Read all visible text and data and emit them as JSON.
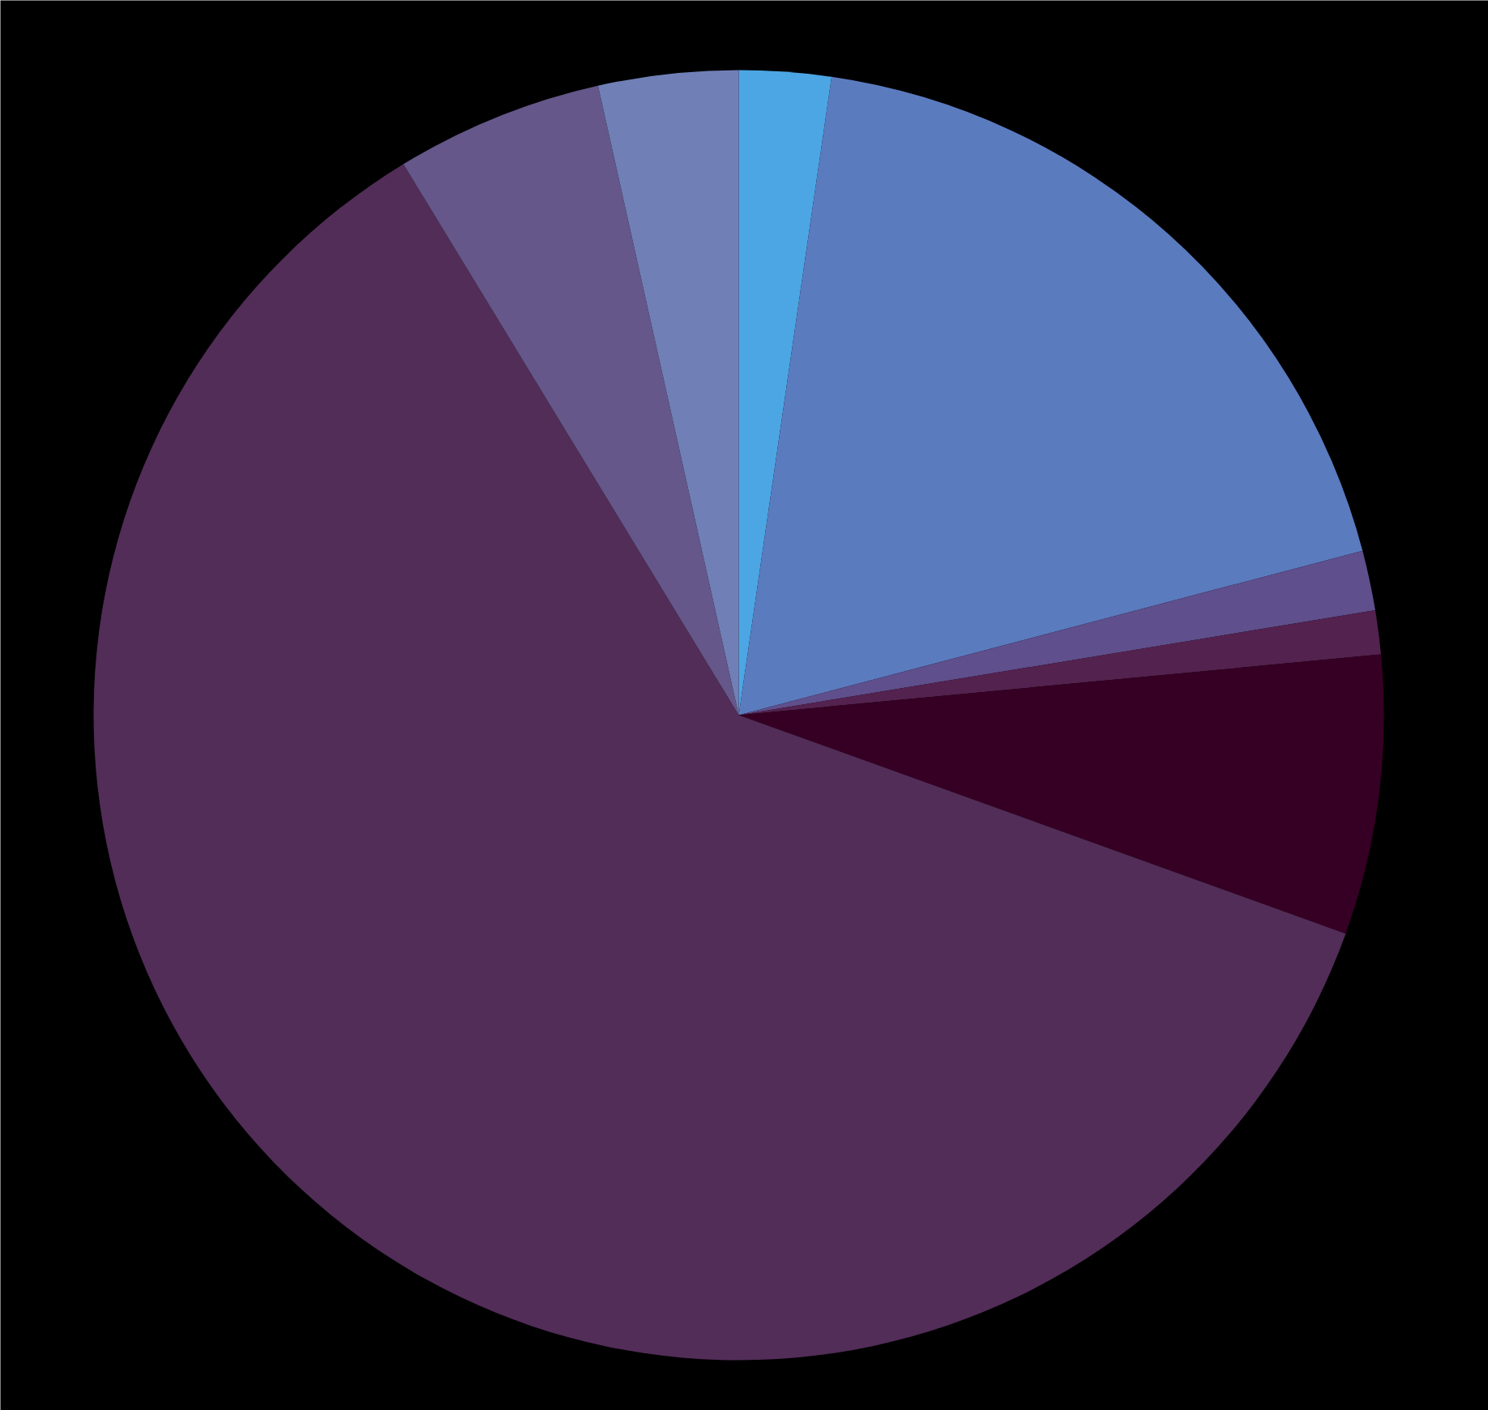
{
  "chart_data": {
    "type": "pie",
    "categories": [
      null,
      null,
      null,
      null,
      null,
      null,
      null,
      null
    ],
    "values": [
      2.3,
      18.6,
      1.5,
      1.1,
      7.0,
      60.8,
      5.2,
      3.5
    ],
    "colors": [
      "#4ca6e4",
      "#5b7bbf",
      "#5f4f8c",
      "#54224f",
      "#360024",
      "#522d58",
      "#655789",
      "#7080b6"
    ]
  }
}
